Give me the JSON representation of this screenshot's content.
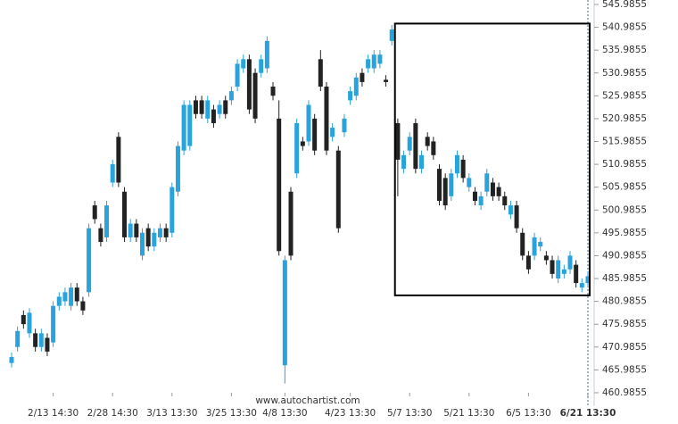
{
  "chart_data": {
    "type": "candlestick",
    "source": "www.autochartist.com",
    "categories": [
      null,
      null,
      null,
      null,
      null,
      null,
      null,
      "2/13 14:30",
      null,
      null,
      null,
      null,
      null,
      null,
      null,
      null,
      null,
      "2/28 14:30",
      null,
      null,
      null,
      null,
      null,
      null,
      null,
      null,
      null,
      "3/13 13:30",
      null,
      null,
      null,
      null,
      null,
      null,
      null,
      null,
      null,
      "3/25 13:30",
      null,
      null,
      null,
      null,
      null,
      null,
      null,
      null,
      "4/8 13:30",
      null,
      null,
      null,
      null,
      null,
      null,
      null,
      null,
      null,
      null,
      "4/23 13:30",
      null,
      null,
      null,
      null,
      null,
      null,
      null,
      null,
      null,
      "5/7 13:30",
      null,
      null,
      null,
      null,
      null,
      null,
      null,
      null,
      null,
      "5/21 13:30",
      null,
      null,
      null,
      null,
      null,
      null,
      null,
      null,
      null,
      "6/5 13:30",
      null,
      null,
      null,
      null,
      null,
      null,
      null,
      null,
      null,
      "6/21 13:30"
    ],
    "open": [
      467.5,
      471,
      478,
      474,
      474,
      471,
      473,
      472,
      480,
      481,
      480,
      484,
      481,
      483,
      502,
      497,
      495,
      507,
      517,
      505,
      495,
      498,
      491,
      497,
      493,
      495,
      497,
      496,
      505,
      514,
      515,
      525,
      525,
      521,
      523,
      522,
      525,
      525,
      528,
      532,
      534,
      531,
      531,
      532,
      528,
      521,
      467,
      505,
      509,
      516,
      516,
      521,
      534,
      528,
      517,
      514,
      518,
      525,
      526,
      531,
      532,
      532,
      533,
      529.5,
      538,
      520,
      510,
      514,
      520,
      510,
      517,
      516,
      510,
      508,
      504,
      509,
      512,
      506,
      505,
      502,
      505,
      507,
      506,
      504,
      500,
      502,
      496,
      491,
      491,
      493,
      491,
      490,
      486,
      487,
      488,
      489,
      484,
      485
    ],
    "high": [
      469.8,
      475.5,
      479,
      479.5,
      475,
      475,
      474,
      481,
      483,
      484,
      485,
      485,
      482,
      498,
      503,
      498,
      503,
      512,
      518,
      506,
      499,
      499,
      497,
      498,
      497,
      498,
      498,
      507,
      516,
      525,
      525,
      526,
      526,
      526,
      524,
      525,
      526,
      528,
      534,
      535,
      535,
      532,
      535,
      539,
      529,
      525,
      491,
      506,
      521,
      517,
      525,
      522,
      536,
      529,
      520,
      515,
      522,
      528,
      531,
      532,
      535,
      536,
      536,
      530.5,
      541.5,
      521,
      514,
      518,
      521,
      514,
      518,
      517,
      511,
      509,
      510,
      514,
      513,
      509,
      506,
      505,
      510,
      508,
      507,
      505,
      503,
      503,
      497,
      492,
      496,
      495,
      492,
      491,
      491,
      489,
      492,
      490,
      486,
      487.5
    ],
    "low": [
      466.5,
      470,
      475,
      473,
      470,
      470,
      469,
      471,
      479,
      480,
      479,
      480,
      478,
      482,
      498,
      493,
      494,
      506,
      506,
      494,
      494,
      494,
      490,
      492,
      492,
      494,
      494,
      495,
      504,
      513,
      514,
      521,
      521,
      520,
      519,
      521,
      521,
      524,
      527,
      531,
      522,
      520,
      530,
      531,
      525,
      491,
      463,
      490,
      508,
      514,
      515,
      513,
      527,
      513,
      516,
      496,
      517,
      524,
      525,
      528,
      531,
      531,
      532,
      528,
      537,
      504,
      509,
      513,
      509,
      509,
      514,
      512,
      502,
      501,
      503,
      508,
      507,
      505,
      502,
      501,
      504,
      503,
      503,
      501,
      499,
      496,
      490,
      487,
      490,
      492,
      489,
      486,
      485,
      486,
      487,
      484,
      483,
      484
    ],
    "close": [
      468.8,
      474.5,
      476,
      478.5,
      471,
      474,
      470,
      480,
      482,
      483,
      484,
      481,
      479,
      497,
      499,
      494,
      502,
      511,
      507,
      495,
      498,
      495,
      496,
      493,
      496,
      497,
      495,
      506,
      515,
      524,
      524,
      522,
      522,
      525,
      520,
      524,
      522,
      527,
      533,
      534,
      523,
      521,
      534,
      538,
      526,
      492,
      490,
      491,
      520,
      515,
      524,
      514,
      528,
      514,
      519,
      497,
      521,
      527,
      530,
      529,
      534,
      535,
      535,
      529,
      540.5,
      512,
      513,
      517,
      510,
      513,
      515,
      513,
      503,
      502,
      509,
      513,
      508,
      508,
      503,
      504,
      509,
      504,
      504,
      502,
      502,
      497,
      491,
      488,
      495,
      494,
      490,
      487,
      490,
      488,
      491,
      485,
      485,
      486.5
    ],
    "up_color": "#29a3dc",
    "down_color": "#222222",
    "box_ylim": [
      482.3,
      541.8
    ],
    "ylim": [
      458.05,
      546.96
    ],
    "yticks": [
      460.9855,
      465.9855,
      470.9855,
      475.9855,
      480.9855,
      485.9855,
      490.9855,
      495.9855,
      500.9855,
      505.9855,
      510.9855,
      515.9855,
      520.9855,
      525.9855,
      530.9855,
      535.9855,
      540.9855,
      545.9855
    ],
    "grid": false
  }
}
